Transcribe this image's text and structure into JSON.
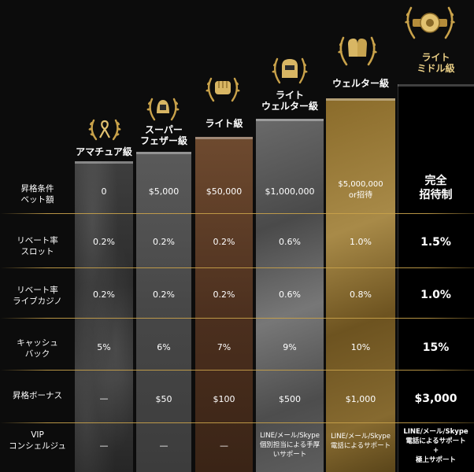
{
  "tiers": [
    {
      "name": "アマチュア級"
    },
    {
      "name": "スーパー\nフェザー級"
    },
    {
      "name": "ライト級"
    },
    {
      "name": "ライト\nウェルター級"
    },
    {
      "name": "ウェルター級"
    },
    {
      "name": "ライト\nミドル級"
    }
  ],
  "rows": [
    {
      "label": "昇格条件\nベット額",
      "values": [
        "0",
        "$5,000",
        "$50,000",
        "$1,000,000",
        "$5,000,000\nor招待",
        "完全\n招待制"
      ]
    },
    {
      "label": "リベート率\nスロット",
      "values": [
        "0.2%",
        "0.2%",
        "0.2%",
        "0.6%",
        "1.0%",
        "1.5%"
      ]
    },
    {
      "label": "リベート率\nライブカジノ",
      "values": [
        "0.2%",
        "0.2%",
        "0.2%",
        "0.6%",
        "0.8%",
        "1.0%"
      ]
    },
    {
      "label": "キャッシュ\nバック",
      "values": [
        "5%",
        "6%",
        "7%",
        "9%",
        "10%",
        "15%"
      ]
    },
    {
      "label": "昇格ボーナス",
      "values": [
        "—",
        "$50",
        "$100",
        "$500",
        "$1,000",
        "$3,000"
      ]
    },
    {
      "label": "VIP\nコンシェルジュ",
      "values": [
        "—",
        "—",
        "—",
        "LINE/メール/Skype\n個別担当による手厚\nいサポート",
        "LINE/メール/Skype\n電話によるサポート",
        "LINE/メール/Skype\n電話によるサポート\n+\n極上サポート"
      ]
    }
  ],
  "colors": {
    "gold": "#c9a24a",
    "background": "#0c0c0c"
  }
}
